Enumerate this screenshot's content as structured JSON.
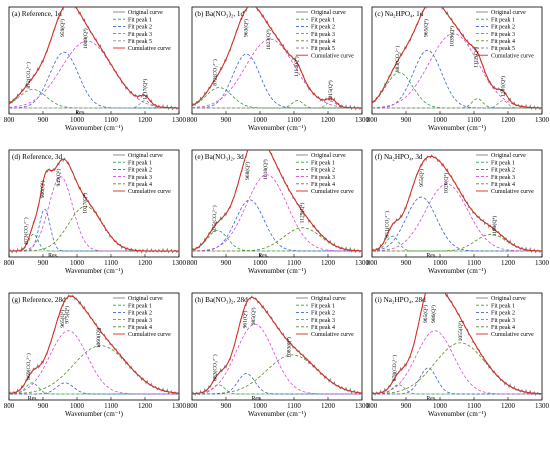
{
  "chart_data": [
    {
      "type": "line",
      "title": "(a) Reference, 1d",
      "xlabel": "Wavenumber (cm⁻¹)",
      "xlim": [
        800,
        1300
      ],
      "xticks": [
        800,
        900,
        1000,
        1100,
        1200,
        1300
      ],
      "legend": [
        "Original curve",
        "Fit peak 1",
        "Fit peak 2",
        "Fit peak 3",
        "Fit peak 5",
        "Cumulative curve"
      ],
      "legend_placement": "top-right",
      "peaks": [
        {
          "series": "Fit peak 1",
          "center": 870,
          "width": 40,
          "height": 0.2
        },
        {
          "series": "Fit peak 2",
          "center": 962,
          "width": 42,
          "height": 0.6
        },
        {
          "series": "Fit peak 3",
          "center": 1030,
          "width": 75,
          "height": 0.72
        },
        {
          "series": "Fit peak 5",
          "center": 1200,
          "width": 14,
          "height": 0.08
        }
      ],
      "annotations": [
        {
          "text": "872(CO₃²⁻)",
          "x": 862
        },
        {
          "text": "959(Q²)",
          "x": 962
        },
        {
          "text": "1009(Q³)",
          "x": 1030
        },
        {
          "text": "1217(Q⁴)",
          "x": 1205
        },
        {
          "text": "Res.",
          "x": 1010
        }
      ]
    },
    {
      "type": "line",
      "title": "(b) Ba(NO₃)₂, 1d",
      "xlabel": "Wavenumber (cm⁻¹)",
      "xlim": [
        800,
        1300
      ],
      "xticks": [
        800,
        900,
        1000,
        1100,
        1200,
        1300
      ],
      "legend": [
        "Original curve",
        "Fit peak 1",
        "Fit peak 2",
        "Fit peak 3",
        "Fit peak 4",
        "Fit peak 5",
        "Cumulative curve"
      ],
      "legend_placement": "top-right",
      "peaks": [
        {
          "series": "Fit peak 1",
          "center": 880,
          "width": 38,
          "height": 0.22
        },
        {
          "series": "Fit peak 2",
          "center": 960,
          "width": 40,
          "height": 0.58
        },
        {
          "series": "Fit peak 3",
          "center": 1030,
          "width": 72,
          "height": 0.74
        },
        {
          "series": "Fit peak 4",
          "center": 1110,
          "width": 16,
          "height": 0.08
        },
        {
          "series": "Fit peak 5",
          "center": 1210,
          "width": 14,
          "height": 0.07
        }
      ],
      "annotations": [
        {
          "text": "872(CO₃²⁻)",
          "x": 872
        },
        {
          "text": "963(Q²)",
          "x": 963
        },
        {
          "text": "1023(Q³)",
          "x": 1030
        },
        {
          "text": "1114(Q⁴)",
          "x": 1112
        },
        {
          "text": "1215(Q⁴)",
          "x": 1212
        }
      ]
    },
    {
      "type": "line",
      "title": "(c) Na₂HPO₄, 1d",
      "xlabel": "Wavenumber (cm⁻¹)",
      "xlim": [
        800,
        1300
      ],
      "xticks": [
        800,
        900,
        1000,
        1100,
        1200,
        1300
      ],
      "legend": [
        "Original curve",
        "Fit peak 1",
        "Fit peak 2",
        "Fit peak 3",
        "Fit peak 4",
        "Fit peak 5",
        "Cumulative curve"
      ],
      "legend_placement": "top-right",
      "peaks": [
        {
          "series": "Fit peak 1",
          "center": 880,
          "width": 40,
          "height": 0.38
        },
        {
          "series": "Fit peak 2",
          "center": 963,
          "width": 42,
          "height": 0.62
        },
        {
          "series": "Fit peak 3",
          "center": 1040,
          "width": 72,
          "height": 0.8
        },
        {
          "series": "Fit peak 4",
          "center": 1110,
          "width": 16,
          "height": 0.1
        },
        {
          "series": "Fit peak 5",
          "center": 1185,
          "width": 14,
          "height": 0.08
        }
      ],
      "annotations": [
        {
          "text": "883(CO₃²⁻)",
          "x": 880
        },
        {
          "text": "965(Q²)",
          "x": 963
        },
        {
          "text": "1039(Q³)",
          "x": 1040
        },
        {
          "text": "1112(Q⁴)",
          "x": 1110
        },
        {
          "text": "1201(Q⁴)",
          "x": 1190
        }
      ]
    },
    {
      "type": "line",
      "title": "(d) Reference, 3d",
      "xlabel": "Wavenumber (cm⁻¹)",
      "xlim": [
        800,
        1300
      ],
      "xticks": [
        800,
        900,
        1000,
        1100,
        1200,
        1300
      ],
      "legend": [
        "Original curve",
        "Fit peak 1",
        "Fit peak 2",
        "Fit peak 3",
        "Fit peak 4",
        "Cumulative curve"
      ],
      "legend_placement": "top-right",
      "peaks": [
        {
          "series": "Fit peak 1",
          "center": 872,
          "width": 14,
          "height": 0.18
        },
        {
          "series": "Fit peak 2",
          "center": 905,
          "width": 16,
          "height": 0.45
        },
        {
          "series": "Fit peak 3",
          "center": 952,
          "width": 35,
          "height": 0.8
        },
        {
          "series": "Fit peak 4",
          "center": 1025,
          "width": 50,
          "height": 0.48
        }
      ],
      "annotations": [
        {
          "text": "873(CO₃²⁻)",
          "x": 855
        },
        {
          "text": "906(Q¹)",
          "x": 903
        },
        {
          "text": "949(Q²)",
          "x": 950
        },
        {
          "text": "1027(Q³)",
          "x": 1028
        },
        {
          "text": "Res.",
          "x": 930
        }
      ]
    },
    {
      "type": "line",
      "title": "(e) Ba(NO₃)₂, 3d",
      "xlabel": "Wavenumber (cm⁻¹)",
      "xlim": [
        800,
        1300
      ],
      "xticks": [
        800,
        900,
        1000,
        1100,
        1200,
        1300
      ],
      "legend": [
        "Original curve",
        "Fit peak 1",
        "Fit peak 2",
        "Fit peak 3",
        "Fit peak 4",
        "Cumulative curve"
      ],
      "legend_placement": "top-right",
      "peaks": [
        {
          "series": "Fit peak 1",
          "center": 875,
          "width": 30,
          "height": 0.22
        },
        {
          "series": "Fit peak 2",
          "center": 970,
          "width": 42,
          "height": 0.55
        },
        {
          "series": "Fit peak 3",
          "center": 1020,
          "width": 60,
          "height": 0.82
        },
        {
          "series": "Fit peak 4",
          "center": 1125,
          "width": 55,
          "height": 0.25
        }
      ],
      "annotations": [
        {
          "text": "875(CO₃²⁻)",
          "x": 870
        },
        {
          "text": "968(Q²)",
          "x": 968
        },
        {
          "text": "1018(Q³)",
          "x": 1020
        },
        {
          "text": "1129(Q⁴)",
          "x": 1128
        },
        {
          "text": "Res.",
          "x": 1010
        }
      ]
    },
    {
      "type": "line",
      "title": "(f) Na₂HPO₄, 3d",
      "xlabel": "Wavenumber (cm⁻¹)",
      "xlim": [
        800,
        1300
      ],
      "xticks": [
        800,
        900,
        1000,
        1100,
        1200,
        1300
      ],
      "legend": [
        "Original curve",
        "Fit peak 1",
        "Fit peak 2",
        "Fit peak 3",
        "Fit peak 4",
        "Cumulative curve"
      ],
      "legend_placement": "top-right",
      "peaks": [
        {
          "series": "Fit peak 1",
          "center": 860,
          "width": 18,
          "height": 0.16
        },
        {
          "series": "Fit peak 2",
          "center": 945,
          "width": 45,
          "height": 0.58
        },
        {
          "series": "Fit peak 3",
          "center": 1020,
          "width": 62,
          "height": 0.72
        },
        {
          "series": "Fit peak 4",
          "center": 1150,
          "width": 45,
          "height": 0.18
        }
      ],
      "annotations": [
        {
          "text": "851(CO₃²⁻)",
          "x": 848
        },
        {
          "text": "955(Q²)",
          "x": 950
        },
        {
          "text": "1020(Q³)",
          "x": 1022
        },
        {
          "text": "1169(Q⁴)",
          "x": 1165
        },
        {
          "text": "Res.",
          "x": 975
        }
      ]
    },
    {
      "type": "line",
      "title": "(g) Reference, 28d",
      "xlabel": "Wavenumber (cm⁻¹)",
      "xlim": [
        800,
        1300
      ],
      "xticks": [
        800,
        900,
        1000,
        1100,
        1200,
        1300
      ],
      "legend": [
        "Original curve",
        "Fit peak 1",
        "Fit peak 2",
        "Fit peak 3",
        "Fit peak 4",
        "Cumulative curve"
      ],
      "legend_placement": "top-right",
      "peaks": [
        {
          "series": "Fit peak 1",
          "center": 868,
          "width": 18,
          "height": 0.12
        },
        {
          "series": "Fit peak 2",
          "center": 965,
          "width": 25,
          "height": 0.12
        },
        {
          "series": "Fit peak 3",
          "center": 975,
          "width": 55,
          "height": 0.68
        },
        {
          "series": "Fit peak 4",
          "center": 1070,
          "width": 80,
          "height": 0.52
        }
      ],
      "annotations": [
        {
          "text": "869(CO₃²⁻)",
          "x": 862
        },
        {
          "text": "965(Q²)",
          "x": 962
        },
        {
          "text": "975(Q²)",
          "x": 975
        },
        {
          "text": "1060(Q³)",
          "x": 1068
        },
        {
          "text": "Res.",
          "x": 870
        }
      ]
    },
    {
      "type": "line",
      "title": "(h) Ba(NO₃)₂, 28d",
      "xlabel": "Wavenumber (cm⁻¹)",
      "xlim": [
        800,
        1300
      ],
      "xticks": [
        800,
        900,
        1000,
        1100,
        1200,
        1300
      ],
      "legend": [
        "Original curve",
        "Fit peak 1",
        "Fit peak 2",
        "Fit peak 3",
        "Fit peak 4",
        "Cumulative curve"
      ],
      "legend_placement": "top-right",
      "peaks": [
        {
          "series": "Fit peak 1",
          "center": 878,
          "width": 18,
          "height": 0.1
        },
        {
          "series": "Fit peak 2",
          "center": 960,
          "width": 25,
          "height": 0.22
        },
        {
          "series": "Fit peak 3",
          "center": 985,
          "width": 55,
          "height": 0.75
        },
        {
          "series": "Fit peak 4",
          "center": 1095,
          "width": 75,
          "height": 0.42
        }
      ],
      "annotations": [
        {
          "text": "883(CO₃²⁻)",
          "x": 873
        },
        {
          "text": "961(Q²)",
          "x": 960
        },
        {
          "text": "985(Q²)",
          "x": 985
        },
        {
          "text": "1083(Q³)",
          "x": 1090
        },
        {
          "text": "Res.",
          "x": 990
        }
      ]
    },
    {
      "type": "line",
      "title": "(i) Na₂HPO₄, 28d",
      "xlabel": "Wavenumber (cm⁻¹)",
      "xlim": [
        800,
        1300
      ],
      "xticks": [
        800,
        900,
        1000,
        1100,
        1200,
        1300
      ],
      "legend": [
        "Original curve",
        "Fit peak 1",
        "Fit peak 2",
        "Fit peak 3",
        "Fit peak 4",
        "Cumulative curve"
      ],
      "legend_placement": "top-right",
      "peaks": [
        {
          "series": "Fit peak 1",
          "center": 878,
          "width": 18,
          "height": 0.1
        },
        {
          "series": "Fit peak 2",
          "center": 965,
          "width": 25,
          "height": 0.28
        },
        {
          "series": "Fit peak 3",
          "center": 985,
          "width": 55,
          "height": 0.68
        },
        {
          "series": "Fit peak 4",
          "center": 1060,
          "width": 75,
          "height": 0.55
        }
      ],
      "annotations": [
        {
          "text": "878(CO₃²⁻)",
          "x": 870
        },
        {
          "text": "965(Q²)",
          "x": 962
        },
        {
          "text": "986(Q²)",
          "x": 986
        },
        {
          "text": "1055(Q³)",
          "x": 1065
        },
        {
          "text": "Res.",
          "x": 975
        }
      ]
    }
  ]
}
